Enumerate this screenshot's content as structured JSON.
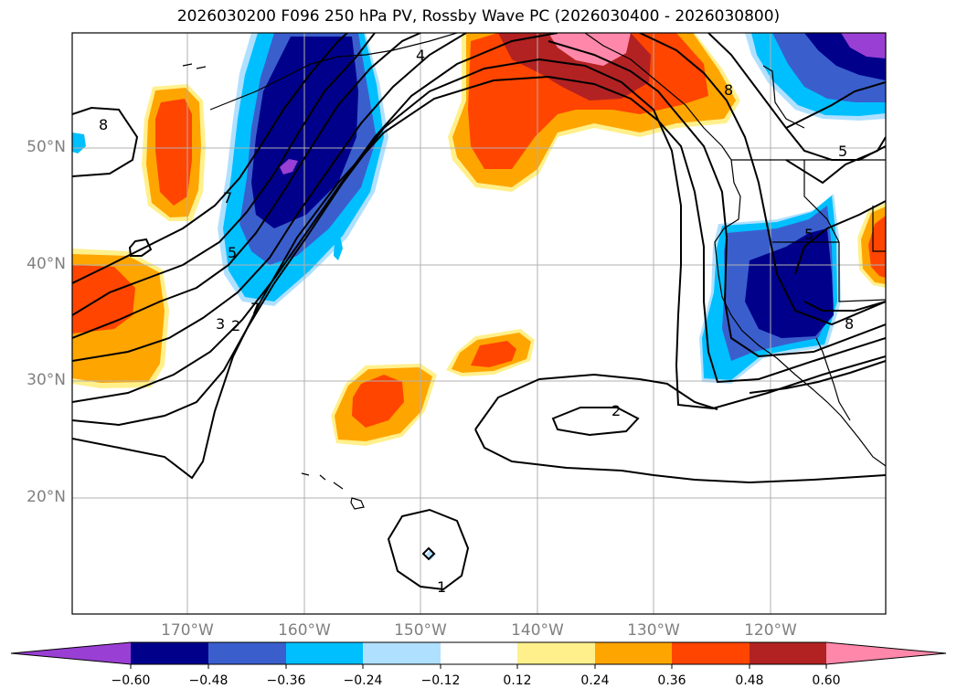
{
  "title": "2026030200 F096 250 hPa PV, Rossby Wave PC (2026030400 - 2026030800)",
  "latitude_labels": [
    "50°N",
    "40°N",
    "30°N",
    "20°N"
  ],
  "longitude_labels": [
    "170°W",
    "160°W",
    "150°W",
    "140°W",
    "130°W",
    "120°W"
  ],
  "contour_labels": [
    "4",
    "8",
    "5",
    "7",
    "5",
    "3",
    "2",
    "7",
    "8",
    "8",
    "5",
    "2",
    "1"
  ],
  "colorbar": {
    "tick_labels": [
      "−0.60",
      "−0.48",
      "−0.36",
      "−0.24",
      "−0.12",
      "0.12",
      "0.24",
      "0.36",
      "0.48",
      "0.60"
    ],
    "colors": [
      "#9a3fd4",
      "#00008b",
      "#3a5fcd",
      "#00bfff",
      "#b0e0ff",
      "#ffffff",
      "#fff08c",
      "#ffa500",
      "#ff4500",
      "#b22222",
      "#ff88aa"
    ]
  },
  "shading_colors": {
    "neg_strong": "#00008b",
    "neg_mid": "#3a5fcd",
    "neg_weak": "#00bfff",
    "neg_faint": "#b0e0ff",
    "pos_faint": "#fff08c",
    "pos_weak": "#ffa500",
    "pos_mid": "#ff4500",
    "pos_strong": "#b22222",
    "pos_max": "#ff88aa",
    "neg_max": "#9a3fd4"
  }
}
